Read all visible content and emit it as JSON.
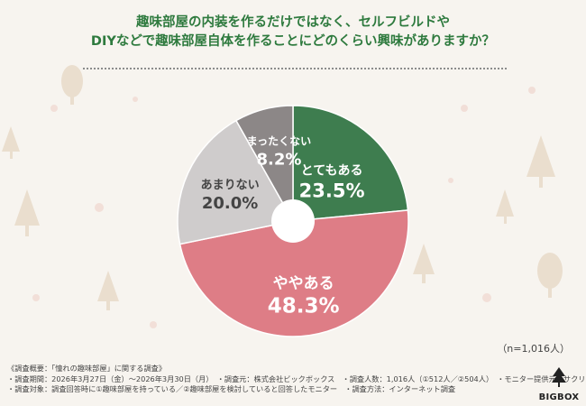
{
  "question": {
    "line1": "趣味部屋の内装を作るだけではなく、セルフビルドや",
    "line2": "DIYなどで趣味部屋自体を作ることにどのくらい興味がありますか？"
  },
  "chart_data": {
    "type": "pie",
    "donut": true,
    "start": "12 o'clock, clockwise",
    "series": [
      {
        "label": "とてもある",
        "value": 23.5,
        "display": "23.5%",
        "color": "#3e7d4f",
        "text_color": "#ffffff"
      },
      {
        "label": "ややある",
        "value": 48.3,
        "display": "48.3%",
        "color": "#de7d86",
        "text_color": "#ffffff"
      },
      {
        "label": "あまりない",
        "value": 20.0,
        "display": "20.0%",
        "color": "#cfcccc",
        "text_color": "#444444"
      },
      {
        "label": "まったくない",
        "value": 8.2,
        "display": "8.2%",
        "color": "#8c8787",
        "text_color": "#ffffff"
      }
    ]
  },
  "n_note": "（n=1,016人）",
  "footer": {
    "line1": "《調査概要：「憧れの趣味部屋」に関する調査》",
    "line2": "・調査期間：2026年3月27日（金）～2026年3月30日（月）　・調査元：株式会社ビックボックス　・調査人数：1,016人（①512人／②504人）　・モニター提供元：サクリサ",
    "line3": "・調査対象：調査回答時に①趣味部屋を持っている／②趣味部屋を検討していると回答したモニター　・調査方法：インターネット調査"
  },
  "logo": {
    "text": "BIGBOX",
    "icon": "bigbox-tree-logo-icon"
  }
}
